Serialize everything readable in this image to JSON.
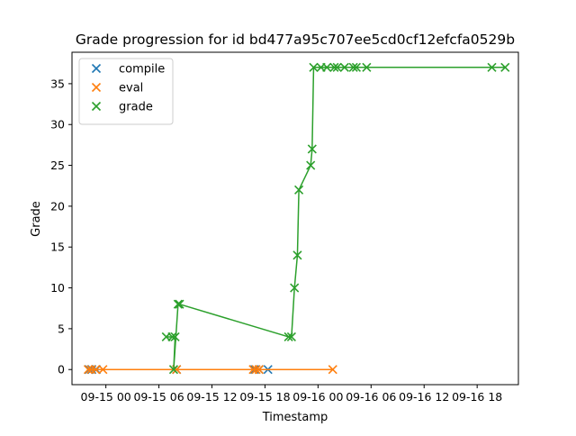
{
  "chart_data": {
    "type": "scatter",
    "title": "Grade progression for id bd477a95c707ee5cd0cf12efcfa0529b",
    "xlabel": "Timestamp",
    "ylabel": "Grade",
    "x_axis_type": "datetime",
    "xlim": [
      "2021-09-14 20:10",
      "2021-09-16 22:40"
    ],
    "ylim": [
      -1.85,
      38.85
    ],
    "x_ticks": [
      {
        "value": "2021-09-15 00:00",
        "label": "09-15 00"
      },
      {
        "value": "2021-09-15 06:00",
        "label": "09-15 06"
      },
      {
        "value": "2021-09-15 12:00",
        "label": "09-15 12"
      },
      {
        "value": "2021-09-15 18:00",
        "label": "09-15 18"
      },
      {
        "value": "2021-09-16 00:00",
        "label": "09-16 00"
      },
      {
        "value": "2021-09-16 06:00",
        "label": "09-16 06"
      },
      {
        "value": "2021-09-16 12:00",
        "label": "09-16 12"
      },
      {
        "value": "2021-09-16 18:00",
        "label": "09-16 18"
      }
    ],
    "y_ticks": [
      0,
      5,
      10,
      15,
      20,
      25,
      30,
      35
    ],
    "grid": false,
    "legend": {
      "placement": "top-left"
    },
    "series": [
      {
        "name": "compile",
        "color": "#1f77b4",
        "marker": "x",
        "line": false,
        "points": [
          {
            "x": "2021-09-14 22:05",
            "y": 0
          },
          {
            "x": "2021-09-14 22:25",
            "y": 0
          },
          {
            "x": "2021-09-14 22:55",
            "y": 0
          },
          {
            "x": "2021-09-15 08:00",
            "y": 0
          },
          {
            "x": "2021-09-15 16:50",
            "y": 0
          },
          {
            "x": "2021-09-15 17:20",
            "y": 0
          },
          {
            "x": "2021-09-15 18:20",
            "y": 0
          }
        ]
      },
      {
        "name": "eval",
        "color": "#ff7f0e",
        "marker": "x",
        "line": true,
        "points": [
          {
            "x": "2021-09-14 22:00",
            "y": 0
          },
          {
            "x": "2021-09-14 22:20",
            "y": 0
          },
          {
            "x": "2021-09-14 22:50",
            "y": 0
          },
          {
            "x": "2021-09-14 23:40",
            "y": 0
          },
          {
            "x": "2021-09-15 08:00",
            "y": 0
          },
          {
            "x": "2021-09-15 16:40",
            "y": 0
          },
          {
            "x": "2021-09-15 17:00",
            "y": 0
          },
          {
            "x": "2021-09-15 17:20",
            "y": 0
          },
          {
            "x": "2021-09-16 01:40",
            "y": 0
          }
        ]
      },
      {
        "name": "grade",
        "color": "#2ca02c",
        "marker": "x",
        "line": true,
        "points": [
          {
            "x": "2021-09-15 06:50",
            "y": 4
          },
          {
            "x": "2021-09-15 07:30",
            "y": 4
          },
          {
            "x": "2021-09-15 07:50",
            "y": 4
          },
          {
            "x": "2021-09-15 07:40",
            "y": 0
          },
          {
            "x": "2021-09-15 08:10",
            "y": 8
          },
          {
            "x": "2021-09-15 08:20",
            "y": 8
          },
          {
            "x": "2021-09-15 20:40",
            "y": 4
          },
          {
            "x": "2021-09-15 21:00",
            "y": 4
          },
          {
            "x": "2021-09-15 21:20",
            "y": 10
          },
          {
            "x": "2021-09-15 21:40",
            "y": 14
          },
          {
            "x": "2021-09-15 21:50",
            "y": 22
          },
          {
            "x": "2021-09-15 23:10",
            "y": 25
          },
          {
            "x": "2021-09-15 23:20",
            "y": 27
          },
          {
            "x": "2021-09-15 23:30",
            "y": 37
          },
          {
            "x": "2021-09-16 00:20",
            "y": 37
          },
          {
            "x": "2021-09-16 01:00",
            "y": 37
          },
          {
            "x": "2021-09-16 01:50",
            "y": 37
          },
          {
            "x": "2021-09-16 02:10",
            "y": 37
          },
          {
            "x": "2021-09-16 03:00",
            "y": 37
          },
          {
            "x": "2021-09-16 04:00",
            "y": 37
          },
          {
            "x": "2021-09-16 04:20",
            "y": 37
          },
          {
            "x": "2021-09-16 05:30",
            "y": 37
          },
          {
            "x": "2021-09-16 19:40",
            "y": 37
          },
          {
            "x": "2021-09-16 21:10",
            "y": 37
          }
        ]
      }
    ]
  }
}
